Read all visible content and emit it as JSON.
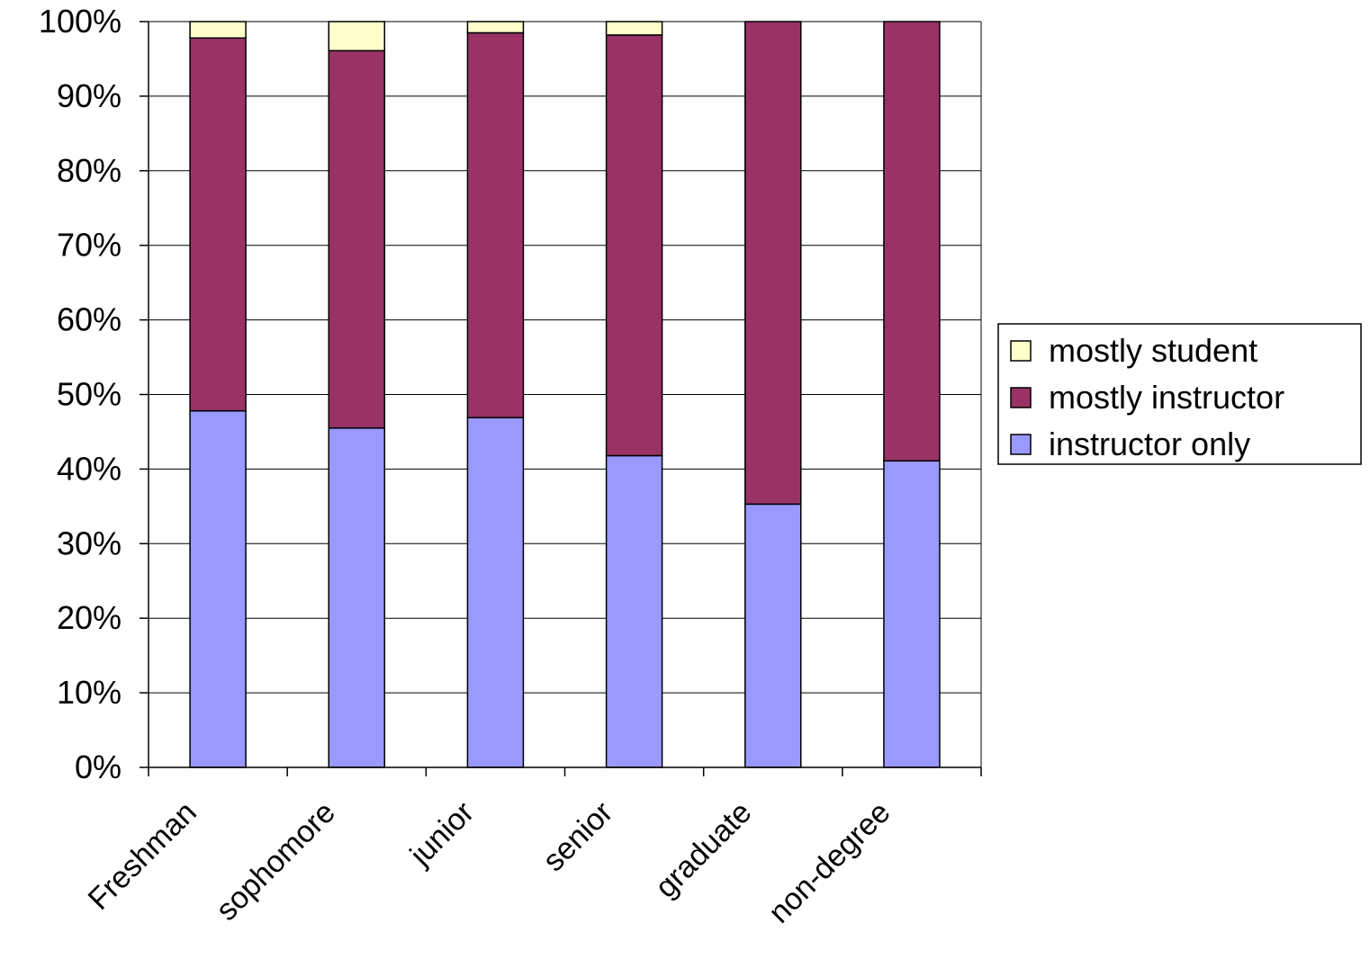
{
  "chart_data": {
    "type": "bar",
    "stacked": true,
    "percent": true,
    "categories": [
      "Freshman",
      "sophomore",
      "junior",
      "senior",
      "graduate",
      "non-degree"
    ],
    "series": [
      {
        "name": "instructor only",
        "values": [
          47.8,
          45.5,
          46.9,
          41.8,
          35.3,
          41.1
        ],
        "color": "#9999ff"
      },
      {
        "name": "mostly instructor",
        "values": [
          50.0,
          50.6,
          51.6,
          56.4,
          64.7,
          58.9
        ],
        "color": "#993366"
      },
      {
        "name": "mostly student",
        "values": [
          2.2,
          3.9,
          1.5,
          1.8,
          0.0,
          0.0
        ],
        "color": "#ffffcc"
      }
    ],
    "ylim": [
      0,
      100
    ],
    "yticks": [
      "0%",
      "10%",
      "20%",
      "30%",
      "40%",
      "50%",
      "60%",
      "70%",
      "80%",
      "90%",
      "100%"
    ],
    "grid": true,
    "legend_position": "right",
    "legend_order": [
      "mostly student",
      "mostly instructor",
      "instructor only"
    ],
    "title": "",
    "xlabel": "",
    "ylabel": ""
  }
}
